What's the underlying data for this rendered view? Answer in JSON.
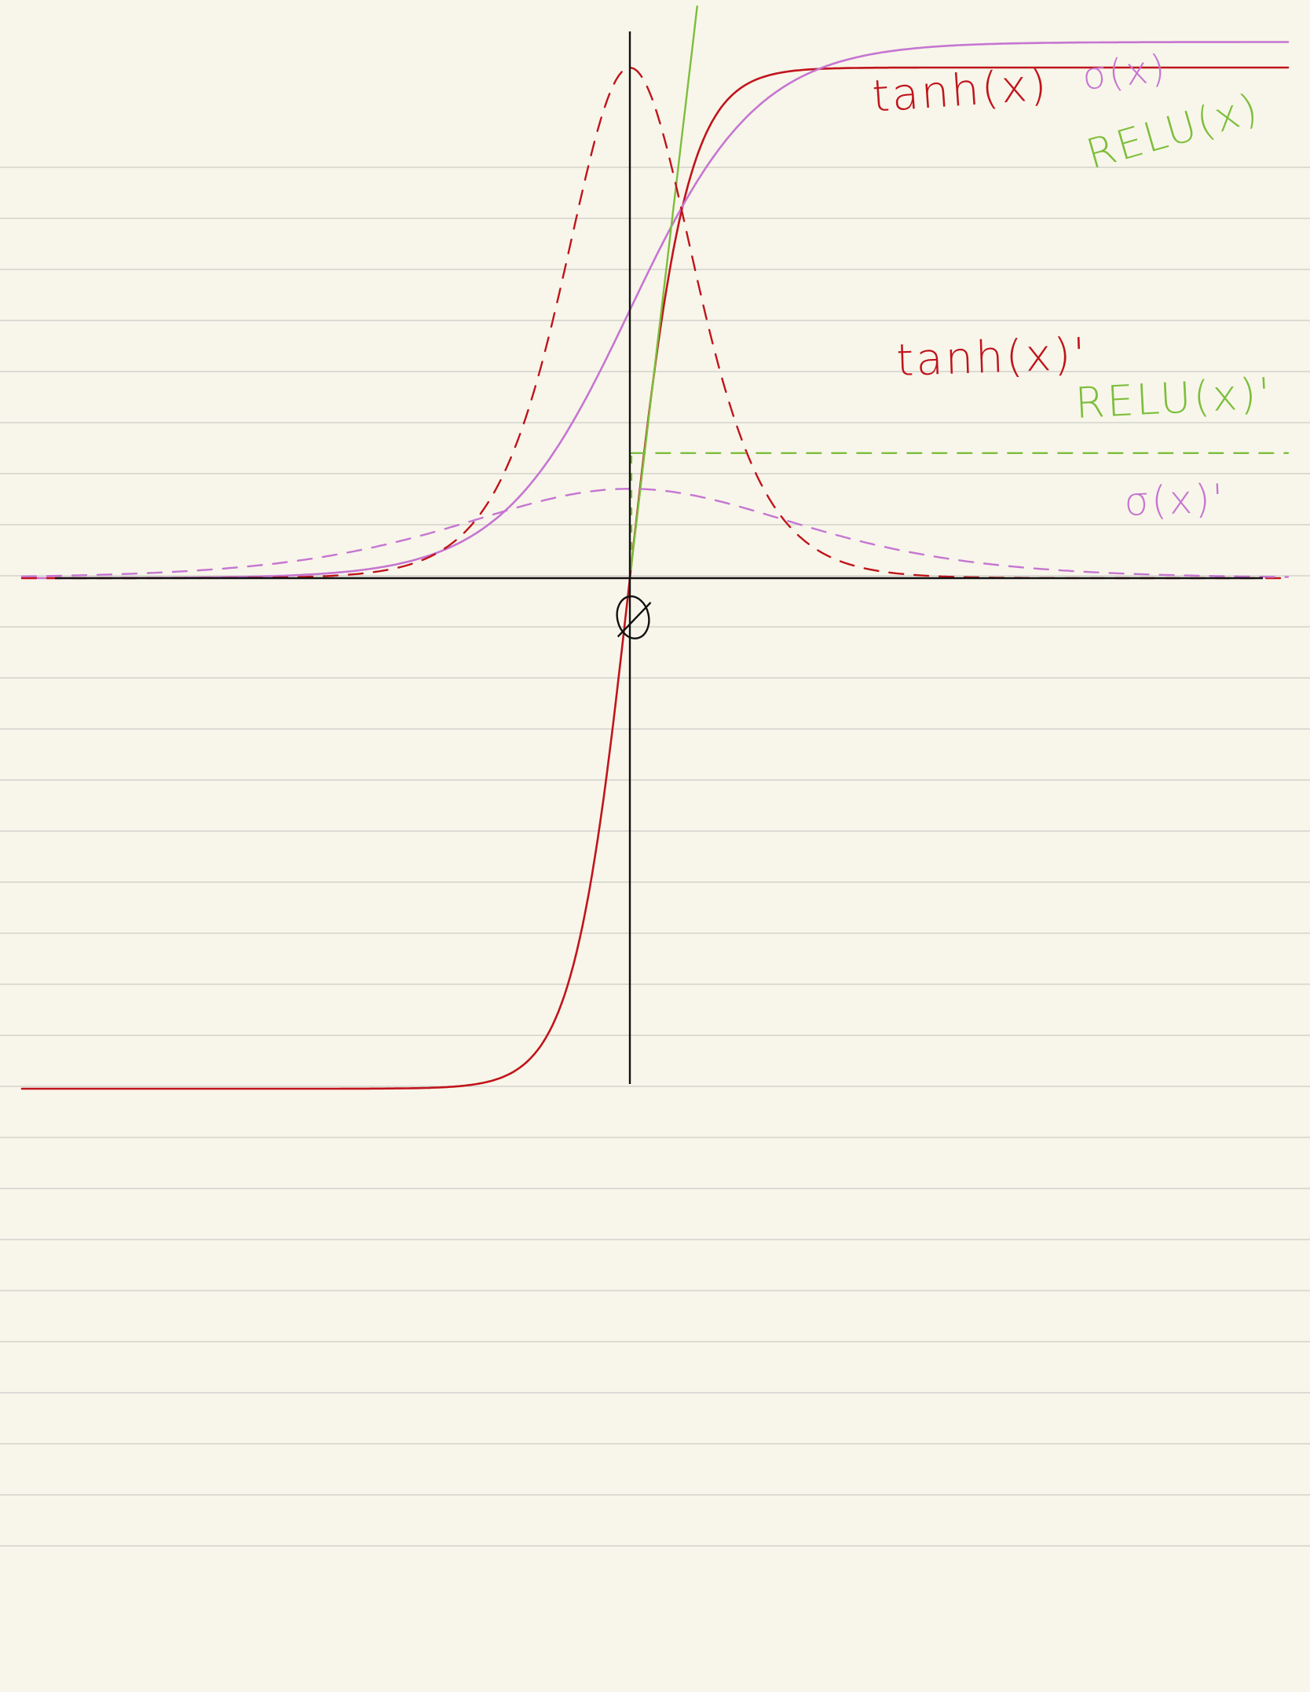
{
  "paper": {
    "background": "#f8f6ea",
    "rule_color": "#d2d2cc"
  },
  "axes": {
    "color": "#111111",
    "origin_label": "0"
  },
  "labels": {
    "tanh": "tanh(x)",
    "sigmoid": "σ(x)",
    "relu": "RELU(x)",
    "tanh_deriv": "tanh(x)'",
    "relu_deriv": "RELU(x)'",
    "sigmoid_deriv": "σ(x)'"
  },
  "chart_data": {
    "type": "line",
    "title": "",
    "xlabel": "",
    "ylabel": "",
    "grid": false,
    "legend": "labels drawn next to curves",
    "x_range": [
      -6,
      6
    ],
    "y_range": [
      -1,
      1.05
    ],
    "series": [
      {
        "name": "tanh(x)",
        "function": "tanh",
        "style": "solid",
        "color": "#c0141c",
        "width": 2.6
      },
      {
        "name": "σ(x)",
        "function": "sigmoid",
        "style": "solid",
        "color": "#c675d2",
        "width": 2.6
      },
      {
        "name": "RELU(x)",
        "function": "relu",
        "style": "solid",
        "color": "#7dbe3c",
        "width": 2.4
      },
      {
        "name": "tanh(x)'",
        "function": "tanh_deriv",
        "style": "dashed",
        "color": "#c0141c",
        "width": 2.4
      },
      {
        "name": "RELU(x)'",
        "function": "relu_deriv",
        "style": "dashed",
        "color": "#7dbe3c",
        "width": 2.4
      },
      {
        "name": "σ(x)'",
        "function": "sigmoid_deriv",
        "style": "dashed",
        "color": "#c675d2",
        "width": 2.4
      }
    ]
  }
}
